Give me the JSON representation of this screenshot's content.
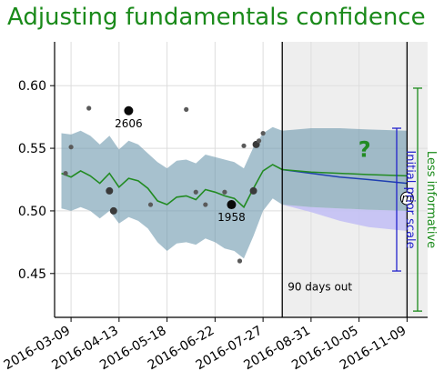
{
  "title": "Adjusting fundamentals confidence",
  "chart_data": {
    "type": "line",
    "title": "Adjusting fundamentals confidence",
    "xlabel": "",
    "ylabel": "",
    "xlim": [
      "2016-02-26",
      "2016-11-24"
    ],
    "ylim": [
      0.415,
      0.635
    ],
    "x_ticks": [
      "2016-03-09",
      "2016-04-13",
      "2016-05-18",
      "2016-06-22",
      "2016-07-27",
      "2016-08-31",
      "2016-10-05",
      "2016-11-09"
    ],
    "y_ticks": [
      0.45,
      0.5,
      0.55,
      0.6
    ],
    "grid": true,
    "colors": {
      "title": "#1a8a1a",
      "mean_line": "#228b22",
      "band": "#6c98ae",
      "forecast_line": "#1f3fb0",
      "prior_band": "#c3c0f4",
      "shaded_region": "#eeeeee",
      "initial_prior_bracket": "#2222cc",
      "less_informative_bracket": "#1a8a1a"
    },
    "series": [
      {
        "x": [
          "2016-03-02",
          "2016-03-09",
          "2016-03-16",
          "2016-03-23",
          "2016-03-30",
          "2016-04-06",
          "2016-04-13",
          "2016-04-20",
          "2016-04-27",
          "2016-05-04",
          "2016-05-11",
          "2016-05-18",
          "2016-05-25",
          "2016-06-01",
          "2016-06-08",
          "2016-06-15",
          "2016-06-22",
          "2016-06-29",
          "2016-07-06",
          "2016-07-13",
          "2016-07-20",
          "2016-07-27",
          "2016-08-03",
          "2016-08-10"
        ],
        "y": [
          0.53,
          0.527,
          0.532,
          0.528,
          0.522,
          0.53,
          0.519,
          0.526,
          0.524,
          0.518,
          0.508,
          0.505,
          0.511,
          0.512,
          0.509,
          0.517,
          0.515,
          0.512,
          0.51,
          0.503,
          0.518,
          0.532,
          0.537,
          0.533
        ],
        "band_low": [
          0.502,
          0.5,
          0.503,
          0.5,
          0.494,
          0.5,
          0.49,
          0.495,
          0.492,
          0.486,
          0.475,
          0.468,
          0.474,
          0.475,
          0.473,
          0.478,
          0.475,
          0.47,
          0.468,
          0.462,
          0.48,
          0.5,
          0.51,
          0.505
        ],
        "band_high": [
          0.562,
          0.561,
          0.564,
          0.56,
          0.553,
          0.56,
          0.549,
          0.556,
          0.553,
          0.546,
          0.539,
          0.534,
          0.54,
          0.541,
          0.538,
          0.545,
          0.543,
          0.541,
          0.539,
          0.534,
          0.551,
          0.562,
          0.567,
          0.564
        ]
      },
      {
        "x": [
          "2016-08-10",
          "2016-08-31",
          "2016-09-21",
          "2016-10-12",
          "2016-11-09"
        ],
        "y": [
          0.533,
          0.531,
          0.53,
          0.529,
          0.528
        ],
        "band_low": [
          0.505,
          0.503,
          0.502,
          0.501,
          0.5
        ],
        "band_high": [
          0.564,
          0.566,
          0.566,
          0.565,
          0.564
        ]
      },
      {
        "x": [
          "2016-08-10",
          "2016-08-31",
          "2016-09-21",
          "2016-10-12",
          "2016-11-09"
        ],
        "y": [
          0.533,
          0.53,
          0.527,
          0.525,
          0.522
        ],
        "band_low": [
          0.505,
          0.499,
          0.492,
          0.487,
          0.484
        ]
      }
    ],
    "points": [
      {
        "x": "2016-03-05",
        "y": 0.53,
        "size": "small"
      },
      {
        "x": "2016-03-09",
        "y": 0.551,
        "size": "small"
      },
      {
        "x": "2016-03-22",
        "y": 0.582,
        "size": "small"
      },
      {
        "x": "2016-04-06",
        "y": 0.516,
        "size": "medium"
      },
      {
        "x": "2016-04-09",
        "y": 0.5,
        "size": "medium"
      },
      {
        "x": "2016-04-20",
        "y": 0.58,
        "size": "large",
        "label": "2606"
      },
      {
        "x": "2016-05-06",
        "y": 0.505,
        "size": "small"
      },
      {
        "x": "2016-06-01",
        "y": 0.581,
        "size": "small"
      },
      {
        "x": "2016-06-08",
        "y": 0.515,
        "size": "small"
      },
      {
        "x": "2016-06-15",
        "y": 0.505,
        "size": "small"
      },
      {
        "x": "2016-06-29",
        "y": 0.515,
        "size": "small"
      },
      {
        "x": "2016-07-04",
        "y": 0.505,
        "size": "large",
        "label": "1958"
      },
      {
        "x": "2016-07-10",
        "y": 0.46,
        "size": "small"
      },
      {
        "x": "2016-07-13",
        "y": 0.552,
        "size": "small"
      },
      {
        "x": "2016-07-20",
        "y": 0.516,
        "size": "medium"
      },
      {
        "x": "2016-07-22",
        "y": 0.553,
        "size": "medium"
      },
      {
        "x": "2016-07-24",
        "y": 0.556,
        "size": "small"
      },
      {
        "x": "2016-07-27",
        "y": 0.562,
        "size": "small"
      }
    ],
    "vlines": [
      "2016-08-10",
      "2016-11-09"
    ],
    "shaded_region": [
      "2016-08-10",
      "2016-11-24"
    ],
    "annotations": {
      "days_out": "90 days out",
      "question_mark": "?",
      "marker_letter": "m",
      "initial_prior_scale": "Initial prior scale",
      "less_informative": "Less informative"
    },
    "brackets": {
      "initial_prior_scale": [
        0.452,
        0.566
      ],
      "less_informative": [
        0.42,
        0.598
      ]
    }
  }
}
